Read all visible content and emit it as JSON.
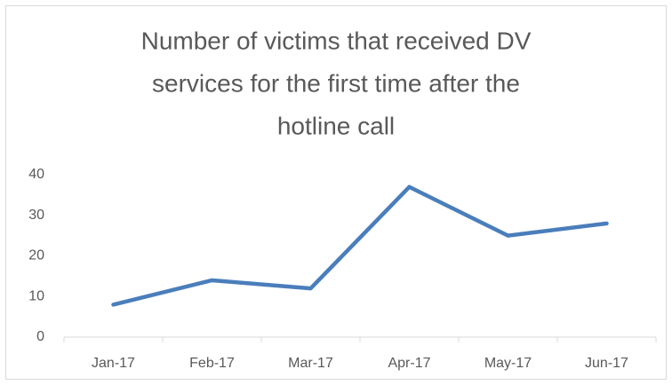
{
  "chart_data": {
    "type": "line",
    "title": [
      "Number of victims that received DV",
      "services for the first time after the",
      "hotline call"
    ],
    "categories": [
      "Jan-17",
      "Feb-17",
      "Mar-17",
      "Apr-17",
      "May-17",
      "Jun-17"
    ],
    "values": [
      8,
      14,
      12,
      37,
      25,
      28
    ],
    "color": "#4a7ebb",
    "ylim": [
      0,
      40
    ],
    "yticks": [
      0,
      10,
      20,
      30,
      40
    ],
    "grid": false
  }
}
